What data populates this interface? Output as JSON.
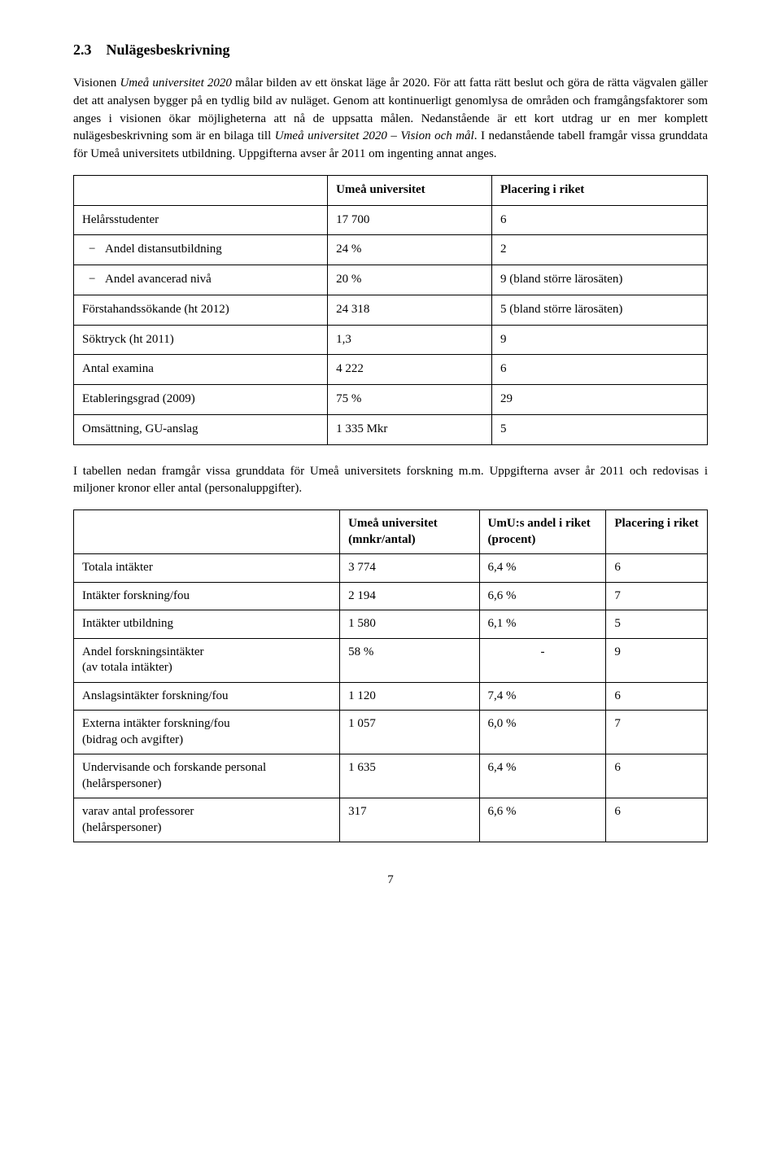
{
  "heading": {
    "num": "2.3",
    "title": "Nulägesbeskrivning"
  },
  "intro": {
    "seg1": "Visionen ",
    "seg2_italic": "Umeå universitet 2020",
    "seg3": " målar bilden av ett önskat läge år 2020. För att fatta rätt beslut och göra de rätta vägvalen gäller det att analysen bygger på en tydlig bild av nuläget. Genom att kontinuerligt genomlysa de områden och framgångsfaktorer som anges i visionen ökar möjligheterna att nå de uppsatta målen. Nedanstående är ett kort utdrag ur en mer komplett nulägesbeskrivning som är en bilaga till ",
    "seg4_italic": "Umeå universitet 2020 – Vision och mål",
    "seg5": ". I nedanstående tabell framgår vissa grunddata för Umeå universitets utbildning. Uppgifterna avser år 2011 om ingenting annat anges."
  },
  "table1": {
    "headers": [
      "",
      "Umeå universitet",
      "Placering i riket"
    ],
    "rows": [
      {
        "label": "Helårsstudenter",
        "v1": "17 700",
        "v2": "6",
        "indent": false
      },
      {
        "label": "Andel distansutbildning",
        "v1": "24 %",
        "v2": "2",
        "indent": true
      },
      {
        "label": "Andel avancerad nivå",
        "v1": "20 %",
        "v2": "9 (bland större lärosäten)",
        "indent": true
      },
      {
        "label": "Förstahandssökande (ht 2012)",
        "v1": "24 318",
        "v2": "5 (bland större lärosäten)",
        "indent": false
      },
      {
        "label": "Söktryck (ht 2011)",
        "v1": "1,3",
        "v2": "9",
        "indent": false
      },
      {
        "label": "Antal examina",
        "v1": "4 222",
        "v2": "6",
        "indent": false
      },
      {
        "label": "Etableringsgrad (2009)",
        "v1": "75 %",
        "v2": "29",
        "indent": false
      },
      {
        "label": "Omsättning, GU-anslag",
        "v1": "1 335 Mkr",
        "v2": "5",
        "indent": false
      }
    ]
  },
  "mid_para": "I tabellen nedan framgår vissa grunddata för Umeå universitets forskning m.m. Uppgifterna avser år 2011 och redovisas i miljoner kronor eller antal (personaluppgifter).",
  "table2": {
    "headers": [
      "",
      "Umeå universitet (mnkr/antal)",
      "UmU:s andel i riket (procent)",
      "Placering i riket"
    ],
    "rows": [
      {
        "label": "Totala intäkter",
        "v1": "3 774",
        "v2": "6,4 %",
        "v3": "6"
      },
      {
        "label": "Intäkter forskning/fou",
        "v1": "2 194",
        "v2": "6,6 %",
        "v3": "7"
      },
      {
        "label": "Intäkter utbildning",
        "v1": "1 580",
        "v2": "6,1 %",
        "v3": "5"
      },
      {
        "label": "Andel forskningsintäkter\n(av totala intäkter)",
        "v1": "58 %",
        "v2": "-",
        "v3": "9",
        "center_v2": true
      },
      {
        "label": "Anslagsintäkter forskning/fou",
        "v1": "1 120",
        "v2": "7,4 %",
        "v3": "6"
      },
      {
        "label": "Externa intäkter forskning/fou\n(bidrag och avgifter)",
        "v1": "1 057",
        "v2": "6,0 %",
        "v3": "7"
      },
      {
        "label": "Undervisande och forskande personal\n(helårspersoner)",
        "v1": "1 635",
        "v2": "6,4 %",
        "v3": "6"
      },
      {
        "label": "varav antal professorer\n(helårspersoner)",
        "v1": "317",
        "v2": "6,6 %",
        "v3": "6"
      }
    ]
  },
  "page_number": "7"
}
